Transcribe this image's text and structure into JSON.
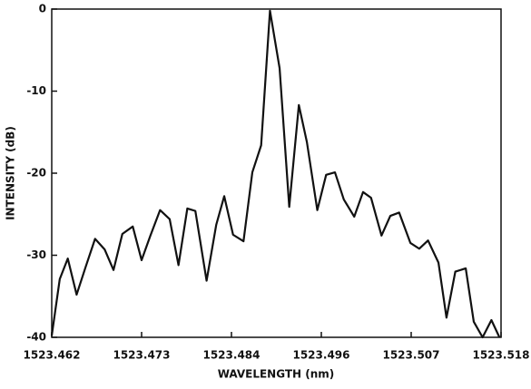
{
  "chart_data": {
    "type": "line",
    "x_label": "WAVELENGTH (nm)",
    "y_label": "INTENSITY (dB)",
    "xlim": [
      1523.462,
      1523.518
    ],
    "ylim": [
      -40,
      0
    ],
    "xticks": [
      1523.462,
      {
        "value": 1523.4732,
        "label": "1523.473"
      },
      {
        "value": 1523.4844,
        "label": "1523.484"
      },
      {
        "value": 1523.4956,
        "label": "1523.496"
      },
      {
        "value": 1523.5068,
        "label": "1523.507"
      },
      1523.518
    ],
    "yticks": [
      0,
      -10,
      -20,
      -30,
      -40
    ],
    "color": "#111111",
    "x": [
      1523.462,
      1523.463,
      1523.464,
      1523.4651,
      1523.4662,
      1523.4674,
      1523.4686,
      1523.4697,
      1523.4708,
      1523.4721,
      1523.4732,
      1523.4743,
      1523.4755,
      1523.4767,
      1523.4778,
      1523.4789,
      1523.4799,
      1523.4813,
      1523.4825,
      1523.4835,
      1523.4846,
      1523.4859,
      1523.487,
      1523.4881,
      1523.4892,
      1523.4904,
      1523.4916,
      1523.4928,
      1523.4938,
      1523.4951,
      1523.4962,
      1523.4973,
      1523.4984,
      1523.4997,
      1523.5008,
      1523.5018,
      1523.5031,
      1523.5042,
      1523.5053,
      1523.5067,
      1523.5078,
      1523.5089,
      1523.5102,
      1523.5112,
      1523.5123,
      1523.5136,
      1523.5146,
      1523.5157,
      1523.5168,
      1523.5178
    ],
    "values": [
      -39.8,
      -32.9,
      -30.4,
      -34.8,
      -31.5,
      -28.0,
      -29.3,
      -31.8,
      -27.4,
      -26.5,
      -30.6,
      -27.6,
      -24.5,
      -25.6,
      -31.2,
      -24.3,
      -24.6,
      -33.1,
      -26.3,
      -22.8,
      -27.5,
      -28.3,
      -19.9,
      -16.6,
      -0.2,
      -7.2,
      -24.1,
      -11.7,
      -16.2,
      -24.5,
      -20.2,
      -19.9,
      -23.2,
      -25.3,
      -22.3,
      -23.0,
      -27.6,
      -25.2,
      -24.8,
      -28.5,
      -29.2,
      -28.2,
      -30.9,
      -37.6,
      -32.0,
      -31.6,
      -38.1,
      -40.0,
      -37.9,
      -40.0
    ]
  }
}
